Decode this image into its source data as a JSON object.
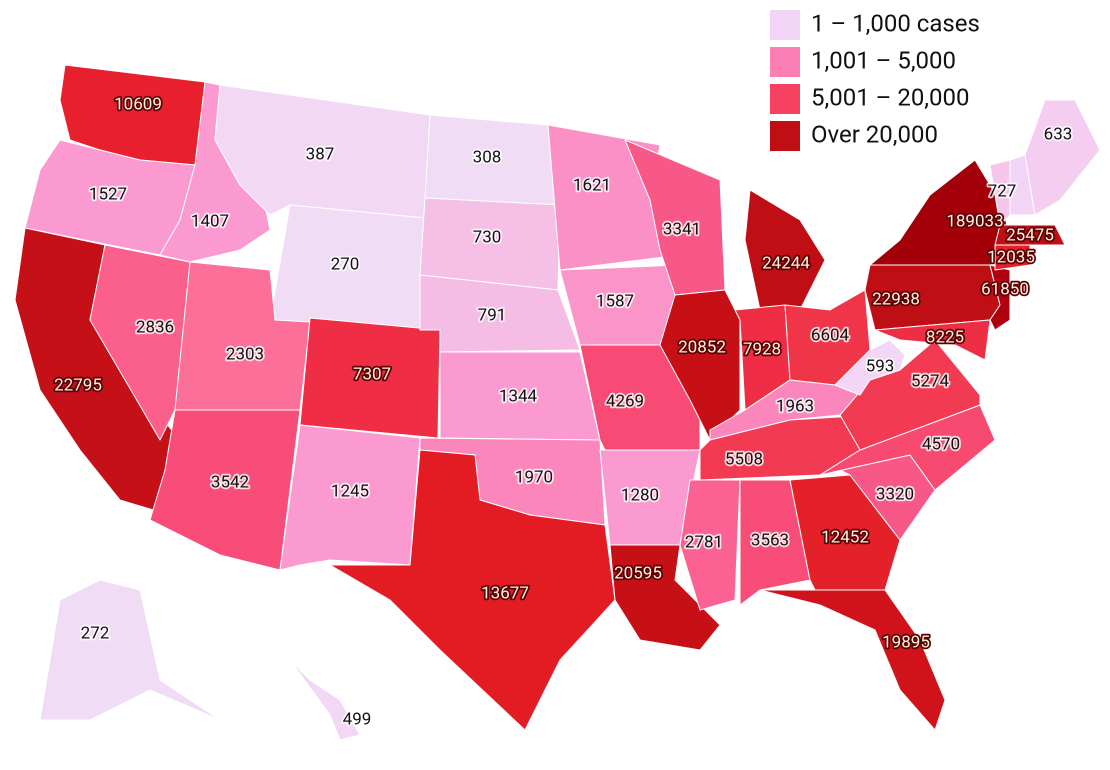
{
  "legend": [
    {
      "label": "1 – 1,000 cases",
      "color": "#f2d4f7"
    },
    {
      "label": "1,001 – 5,000",
      "color": "#fb7fb4"
    },
    {
      "label": "5,001 – 20,000",
      "color": "#f5405f"
    },
    {
      "label": "Over 20,000",
      "color": "#c00e15"
    }
  ],
  "states": [
    {
      "value": 10609,
      "color": "#e8202e"
    },
    {
      "value": 1527,
      "color": "#fb9ad0"
    },
    {
      "value": 22795,
      "color": "#c51018"
    },
    {
      "value": 2836,
      "color": "#fb5f8c"
    },
    {
      "value": 1407,
      "color": "#fb9ad0"
    },
    {
      "value": 387,
      "color": "#f2d8f5"
    },
    {
      "value": 270,
      "color": "#f0dcf5"
    },
    {
      "value": 2303,
      "color": "#fb6f98"
    },
    {
      "value": 3542,
      "color": "#f84d78"
    },
    {
      "value": 7307,
      "color": "#ef2d45"
    },
    {
      "value": 1245,
      "color": "#fb9ad0"
    },
    {
      "value": 308,
      "color": "#f0dcf5"
    },
    {
      "value": 730,
      "color": "#f5bfe6"
    },
    {
      "value": 791,
      "color": "#f5bde6"
    },
    {
      "value": 1344,
      "color": "#fb9ad0"
    },
    {
      "value": 1970,
      "color": "#fb86bc"
    },
    {
      "value": 13677,
      "color": "#e31b23"
    },
    {
      "value": 1621,
      "color": "#fb90c6"
    },
    {
      "value": 1587,
      "color": "#fb94c8"
    },
    {
      "value": 4269,
      "color": "#f74a74"
    },
    {
      "value": 1280,
      "color": "#fb9ad0"
    },
    {
      "value": 20595,
      "color": "#c70f16"
    },
    {
      "value": 3341,
      "color": "#f75888"
    },
    {
      "value": 20852,
      "color": "#c70f16"
    },
    {
      "value": 24244,
      "color": "#c00e15"
    },
    {
      "value": 7928,
      "color": "#ef2d45"
    },
    {
      "value": 6604,
      "color": "#f03548"
    },
    {
      "value": 1963,
      "color": "#fb86bc"
    },
    {
      "value": 5508,
      "color": "#f23b52"
    },
    {
      "value": 2781,
      "color": "#fb6192"
    },
    {
      "value": 3563,
      "color": "#f84d78"
    },
    {
      "value": 12452,
      "color": "#e42028"
    },
    {
      "value": 19895,
      "color": "#d0131b"
    },
    {
      "value": 3320,
      "color": "#f75888"
    },
    {
      "value": 4570,
      "color": "#f74a70"
    },
    {
      "value": 5274,
      "color": "#f23b52"
    },
    {
      "value": 593,
      "color": "#f3d5f5"
    },
    {
      "value": 22938,
      "color": "#bf0f15"
    },
    {
      "value": 189033,
      "color": "#a30009"
    },
    {
      "value": 61850,
      "color": "#b00010"
    },
    {
      "value": 8225,
      "color": "#ee2e45"
    },
    {
      "value": 12035,
      "color": "#e42028"
    },
    {
      "value": 25475,
      "color": "#c00e15"
    },
    {
      "value": 727,
      "color": "#f5c6ea"
    },
    {
      "value": 633,
      "color": "#f5cdf0"
    },
    {
      "value": 272,
      "color": "#f0dcf5"
    },
    {
      "value": 499,
      "color": "#f2d8f5"
    }
  ]
}
